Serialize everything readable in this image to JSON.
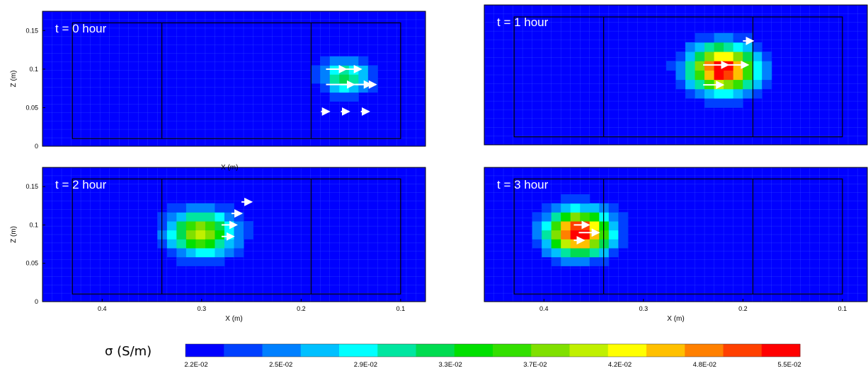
{
  "figure": {
    "colorbar_label": "σ (S/m)",
    "colorbar_tick_labels": [
      "2.2E-02",
      "2.5E-02",
      "2.9E-02",
      "3.3E-02",
      "3.7E-02",
      "4.2E-02",
      "4.8E-02",
      "5.5E-02"
    ],
    "colors": [
      "#0000ff",
      "#0040ff",
      "#0080ff",
      "#00c0ff",
      "#00ffff",
      "#00e6a0",
      "#00dc50",
      "#00e000",
      "#33e000",
      "#80e000",
      "#c0f000",
      "#ffff00",
      "#ffc000",
      "#ff8000",
      "#ff4000",
      "#ff0000"
    ],
    "cut_axis_label": "X (m)"
  },
  "chart_data": [
    {
      "type": "heatmap",
      "title": "t = 0 hour",
      "xlabel": "",
      "ylabel": "Z (m)",
      "xlim": [
        0.46,
        0.075
      ],
      "ylim": [
        0,
        0.175
      ],
      "xticks": [],
      "yticks": [
        "0",
        "0.05",
        "0.1",
        "0.15"
      ],
      "anomaly": {
        "center_x": 0.155,
        "center_z": 0.09,
        "radius_x": 0.03,
        "radius_z": 0.028,
        "peak_sigma": 0.036
      },
      "arrows": [
        {
          "x": 0.175,
          "z": 0.1,
          "len": 0.02
        },
        {
          "x": 0.16,
          "z": 0.1,
          "len": 0.02
        },
        {
          "x": 0.175,
          "z": 0.08,
          "len": 0.028
        },
        {
          "x": 0.16,
          "z": 0.08,
          "len": 0.03
        },
        {
          "x": 0.145,
          "z": 0.08,
          "len": 0.02
        },
        {
          "x": 0.18,
          "z": 0.045,
          "len": 0.008
        },
        {
          "x": 0.16,
          "z": 0.045,
          "len": 0.008
        },
        {
          "x": 0.14,
          "z": 0.045,
          "len": 0.008
        }
      ]
    },
    {
      "type": "heatmap",
      "title": "t = 1 hour",
      "xlabel": "",
      "ylabel": "",
      "xlim": [
        0.46,
        0.075
      ],
      "ylim": [
        0,
        0.175
      ],
      "xticks": [],
      "yticks": [],
      "anomaly": {
        "center_x": 0.22,
        "center_z": 0.095,
        "radius_x": 0.04,
        "radius_z": 0.035,
        "peak_sigma": 0.058
      },
      "arrows": [
        {
          "x": 0.24,
          "z": 0.1,
          "len": 0.025
        },
        {
          "x": 0.22,
          "z": 0.1,
          "len": 0.025
        },
        {
          "x": 0.24,
          "z": 0.075,
          "len": 0.02
        },
        {
          "x": 0.2,
          "z": 0.13,
          "len": 0.01
        }
      ]
    },
    {
      "type": "heatmap",
      "title": "t = 2 hour",
      "xlabel": "X (m)",
      "ylabel": "Z (m)",
      "xlim": [
        0.46,
        0.075
      ],
      "ylim": [
        0,
        0.175
      ],
      "xticks": [
        "0.4",
        "0.3",
        "0.2",
        "0.1"
      ],
      "yticks": [
        "0",
        "0.05",
        "0.1",
        "0.15"
      ],
      "anomaly": {
        "center_x": 0.3,
        "center_z": 0.09,
        "radius_x": 0.04,
        "radius_z": 0.035,
        "peak_sigma": 0.045
      },
      "arrows": [
        {
          "x": 0.28,
          "z": 0.1,
          "len": 0.015
        },
        {
          "x": 0.26,
          "z": 0.13,
          "len": 0.01
        },
        {
          "x": 0.28,
          "z": 0.085,
          "len": 0.012
        },
        {
          "x": 0.27,
          "z": 0.115,
          "len": 0.01
        }
      ]
    },
    {
      "type": "heatmap",
      "title": "t = 3 hour",
      "xlabel": "X (m)",
      "ylabel": "",
      "xlim": [
        0.46,
        0.075
      ],
      "ylim": [
        0,
        0.175
      ],
      "xticks": [
        "0.4",
        "0.3",
        "0.2",
        "0.1"
      ],
      "yticks": [],
      "anomaly": {
        "center_x": 0.365,
        "center_z": 0.09,
        "radius_x": 0.038,
        "radius_z": 0.035,
        "peak_sigma": 0.058
      },
      "arrows": [
        {
          "x": 0.37,
          "z": 0.1,
          "len": 0.015
        },
        {
          "x": 0.365,
          "z": 0.09,
          "len": 0.02
        },
        {
          "x": 0.37,
          "z": 0.08,
          "len": 0.01
        }
      ]
    }
  ]
}
